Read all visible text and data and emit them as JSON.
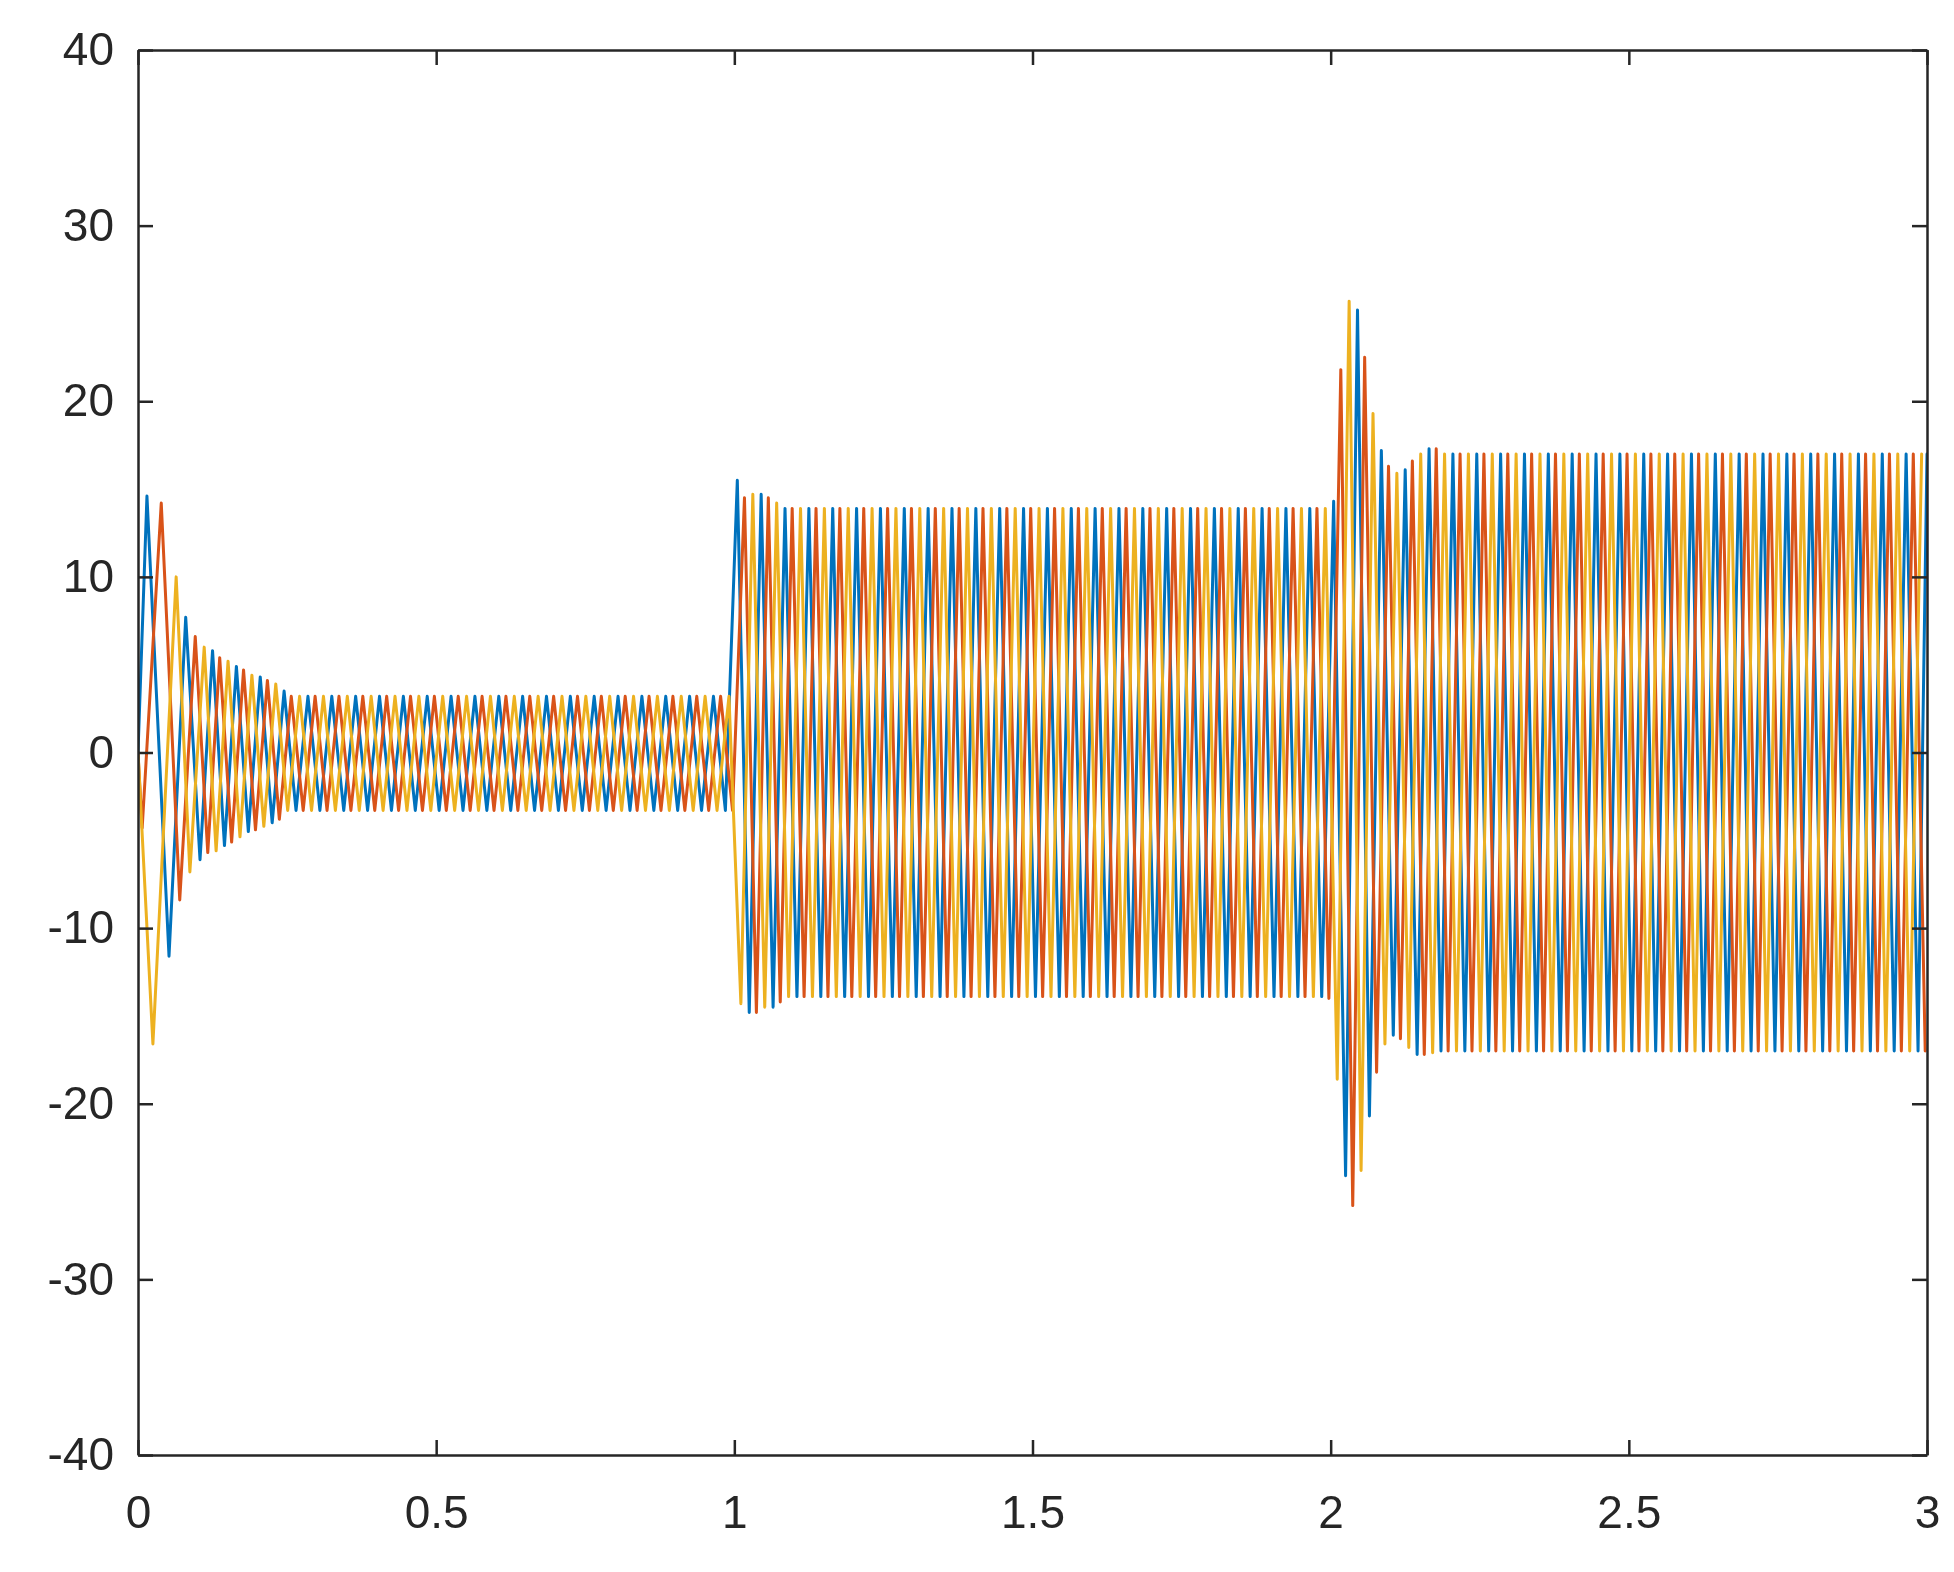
{
  "chart_data": {
    "type": "line",
    "xlim": [
      0,
      3
    ],
    "ylim": [
      -40,
      40
    ],
    "xticks": [
      0,
      0.5,
      1,
      1.5,
      2,
      2.5,
      3
    ],
    "yticks": [
      -40,
      -30,
      -20,
      -10,
      0,
      10,
      20,
      30,
      40
    ],
    "series": [
      {
        "color": "#0072bd",
        "x": [
          0,
          0.015,
          0.052,
          0.08,
          0.104,
          0.125,
          0.145,
          0.165,
          0.185,
          0.205,
          0.225,
          0.245,
          0.265,
          0.285,
          0.305,
          0.325,
          0.345,
          0.365,
          0.385,
          0.405,
          0.425,
          0.445,
          0.465,
          0.485,
          0.505,
          0.525,
          0.545,
          0.565,
          0.585,
          0.605,
          0.625,
          0.645,
          0.665,
          0.685,
          0.705,
          0.725,
          0.745,
          0.765,
          0.785,
          0.805,
          0.825,
          0.845,
          0.865,
          0.885,
          0.905,
          0.925,
          0.945,
          0.965,
          0.985,
          1.005,
          1.025,
          1.045,
          1.065,
          1.085,
          1.105,
          1.125,
          1.145,
          1.165,
          1.185,
          1.205,
          1.225,
          1.245,
          1.265,
          1.285,
          1.305,
          1.325,
          1.345,
          1.365,
          1.385,
          1.405,
          1.425,
          1.445,
          1.465,
          1.485,
          1.505,
          1.525,
          1.545,
          1.565,
          1.585,
          1.605,
          1.625,
          1.645,
          1.665,
          1.685,
          1.705,
          1.725,
          1.745,
          1.765,
          1.785,
          1.805,
          1.825,
          1.845,
          1.865,
          1.885,
          1.905,
          1.925,
          1.945,
          1.965,
          1.985,
          2.005,
          2.025,
          2.045,
          2.065,
          2.085,
          2.105,
          2.125,
          2.145,
          2.165,
          2.185,
          2.205,
          2.225,
          2.245,
          2.265,
          2.285,
          2.305,
          2.325,
          2.345,
          2.365,
          2.385,
          2.405,
          2.425,
          2.445,
          2.465,
          2.485,
          2.505,
          2.525,
          2.545,
          2.565,
          2.585,
          2.605,
          2.625,
          2.645,
          2.665,
          2.685,
          2.705,
          2.725,
          2.745,
          2.765,
          2.785,
          2.805,
          2.825,
          2.845,
          2.865,
          2.885,
          2.905,
          2.925,
          2.945,
          2.965,
          2.985,
          3
        ],
        "values": [
          0,
          14.6,
          -11.6,
          7.7,
          -6.1,
          5.8,
          -5.3,
          4.9,
          -4.5,
          4.3,
          -4,
          3.5,
          -3.3,
          3.2,
          -3.3,
          3.2,
          -3.3,
          3.2,
          -3.3,
          3.2,
          -3.3,
          3.2,
          -3.3,
          3.2,
          -3.3,
          3.2,
          -3.3,
          3.2,
          -3.3,
          3.2,
          -3.3,
          3.2,
          -3.3,
          3.2,
          -3.3,
          3.2,
          -3.3,
          3.2,
          -3.3,
          3.2,
          -3.3,
          3.2,
          -3.3,
          3.2,
          -3.3,
          3.2,
          -3.3,
          3.2,
          -3.3,
          15.5,
          -14.8,
          14.7,
          -14.5,
          13.9,
          -13.9,
          13.9,
          -13.9,
          13.9,
          -13.9,
          13.9,
          -13.9,
          13.9,
          -13.9,
          13.9,
          -13.9,
          13.9,
          -13.9,
          13.9,
          -13.9,
          13.9,
          -13.9,
          13.9,
          -13.9,
          13.9,
          -13.9,
          13.9,
          -13.9,
          13.9,
          -13.9,
          13.9,
          -13.9,
          13.9,
          -13.9,
          13.9,
          -13.9,
          13.9,
          -13.9,
          13.9,
          -13.9,
          13.9,
          -13.9,
          13.9,
          -13.9,
          13.9,
          -13.9,
          13.9,
          -13.9,
          13.9,
          -13.9,
          14.3,
          -24.1,
          25.2,
          -20.7,
          17.2,
          -16.1,
          16.1,
          -17.2,
          17.3,
          -17,
          17,
          -17,
          17,
          -17,
          17,
          -17,
          17,
          -17,
          17,
          -17,
          17,
          -17,
          17,
          -17,
          17,
          -17,
          17,
          -17,
          17,
          -17,
          17,
          -17,
          17,
          -17,
          17,
          -17,
          17,
          -17,
          17,
          -17,
          17,
          -17,
          17,
          -17,
          17,
          -17,
          17,
          -17,
          17,
          -17,
          17
        ]
      },
      {
        "color": "#d95319",
        "x": [
          0,
          0.007,
          0.039,
          0.07,
          0.096,
          0.117,
          0.137,
          0.157,
          0.177,
          0.197,
          0.217,
          0.237,
          0.257,
          0.277,
          0.297,
          0.317,
          0.337,
          0.357,
          0.377,
          0.397,
          0.417,
          0.437,
          0.457,
          0.477,
          0.497,
          0.517,
          0.537,
          0.557,
          0.577,
          0.597,
          0.617,
          0.637,
          0.657,
          0.677,
          0.697,
          0.717,
          0.737,
          0.757,
          0.777,
          0.797,
          0.817,
          0.837,
          0.857,
          0.877,
          0.897,
          0.917,
          0.937,
          0.957,
          0.977,
          0.997,
          1.017,
          1.037,
          1.057,
          1.077,
          1.097,
          1.117,
          1.137,
          1.157,
          1.177,
          1.197,
          1.217,
          1.237,
          1.257,
          1.277,
          1.297,
          1.317,
          1.337,
          1.357,
          1.377,
          1.397,
          1.417,
          1.437,
          1.457,
          1.477,
          1.497,
          1.517,
          1.537,
          1.557,
          1.577,
          1.597,
          1.617,
          1.637,
          1.657,
          1.677,
          1.697,
          1.717,
          1.737,
          1.757,
          1.777,
          1.797,
          1.817,
          1.837,
          1.857,
          1.877,
          1.897,
          1.917,
          1.937,
          1.957,
          1.977,
          1.997,
          2.017,
          2.037,
          2.057,
          2.077,
          2.097,
          2.117,
          2.137,
          2.157,
          2.177,
          2.197,
          2.217,
          2.237,
          2.257,
          2.277,
          2.297,
          2.317,
          2.337,
          2.357,
          2.377,
          2.397,
          2.417,
          2.437,
          2.457,
          2.477,
          2.497,
          2.517,
          2.537,
          2.557,
          2.577,
          2.597,
          2.617,
          2.637,
          2.657,
          2.677,
          2.697,
          2.717,
          2.737,
          2.757,
          2.777,
          2.797,
          2.817,
          2.837,
          2.857,
          2.877,
          2.897,
          2.917,
          2.937,
          2.957,
          2.977,
          2.997
        ],
        "values": [
          0,
          -4.3,
          14.2,
          -8.4,
          6.6,
          -5.7,
          5.4,
          -5.1,
          4.7,
          -4.4,
          4.1,
          -3.8,
          3.2,
          -3.3,
          3.2,
          -3.3,
          3.2,
          -3.3,
          3.2,
          -3.3,
          3.2,
          -3.3,
          3.2,
          -3.3,
          3.2,
          -3.3,
          3.2,
          -3.3,
          3.2,
          -3.3,
          3.2,
          -3.3,
          3.2,
          -3.3,
          3.2,
          -3.3,
          3.2,
          -3.3,
          3.2,
          -3.3,
          3.2,
          -3.3,
          3.2,
          -3.3,
          3.2,
          -3.3,
          3.2,
          -3.3,
          3.2,
          -3.3,
          14.5,
          -14.8,
          14.5,
          -14.2,
          13.9,
          -13.9,
          13.9,
          -13.9,
          13.9,
          -13.9,
          13.9,
          -13.9,
          13.9,
          -13.9,
          13.9,
          -13.9,
          13.9,
          -13.9,
          13.9,
          -13.9,
          13.9,
          -13.9,
          13.9,
          -13.9,
          13.9,
          -13.9,
          13.9,
          -13.9,
          13.9,
          -13.9,
          13.9,
          -13.9,
          13.9,
          -13.9,
          13.9,
          -13.9,
          13.9,
          -13.9,
          13.9,
          -13.9,
          13.9,
          -13.9,
          13.9,
          -13.9,
          13.9,
          -13.9,
          13.9,
          -13.9,
          13.9,
          -14,
          21.8,
          -25.8,
          22.5,
          -18.2,
          16.3,
          -16.3,
          16.6,
          -17.2,
          17.3,
          -17,
          17,
          -17,
          17,
          -17,
          17,
          -17,
          17,
          -17,
          17,
          -17,
          17,
          -17,
          17,
          -17,
          17,
          -17,
          17,
          -17,
          17,
          -17,
          17,
          -17,
          17,
          -17,
          17,
          -17,
          17,
          -17,
          17,
          -17,
          17,
          -17,
          17,
          -17,
          17,
          -17,
          17,
          -17,
          17,
          -17
        ]
      },
      {
        "color": "#edb120",
        "x": [
          0,
          0.025,
          0.064,
          0.087,
          0.111,
          0.131,
          0.151,
          0.171,
          0.191,
          0.211,
          0.231,
          0.251,
          0.271,
          0.291,
          0.311,
          0.331,
          0.351,
          0.371,
          0.391,
          0.411,
          0.431,
          0.451,
          0.471,
          0.491,
          0.511,
          0.531,
          0.551,
          0.571,
          0.591,
          0.611,
          0.631,
          0.651,
          0.671,
          0.691,
          0.711,
          0.731,
          0.751,
          0.771,
          0.791,
          0.811,
          0.831,
          0.851,
          0.871,
          0.891,
          0.911,
          0.931,
          0.951,
          0.971,
          0.991,
          1.011,
          1.031,
          1.051,
          1.071,
          1.091,
          1.111,
          1.131,
          1.151,
          1.171,
          1.191,
          1.211,
          1.231,
          1.251,
          1.271,
          1.291,
          1.311,
          1.331,
          1.351,
          1.371,
          1.391,
          1.411,
          1.431,
          1.451,
          1.471,
          1.491,
          1.511,
          1.531,
          1.551,
          1.571,
          1.591,
          1.611,
          1.631,
          1.651,
          1.671,
          1.691,
          1.711,
          1.731,
          1.751,
          1.771,
          1.791,
          1.811,
          1.831,
          1.851,
          1.871,
          1.891,
          1.911,
          1.931,
          1.951,
          1.971,
          1.991,
          2.011,
          2.031,
          2.051,
          2.071,
          2.091,
          2.111,
          2.131,
          2.151,
          2.171,
          2.191,
          2.211,
          2.231,
          2.251,
          2.271,
          2.291,
          2.311,
          2.331,
          2.351,
          2.371,
          2.391,
          2.411,
          2.431,
          2.451,
          2.471,
          2.491,
          2.511,
          2.531,
          2.551,
          2.571,
          2.591,
          2.611,
          2.631,
          2.651,
          2.671,
          2.691,
          2.711,
          2.731,
          2.751,
          2.771,
          2.791,
          2.811,
          2.831,
          2.851,
          2.871,
          2.891,
          2.911,
          2.931,
          2.951,
          2.971,
          2.991
        ],
        "values": [
          0,
          -16.6,
          10,
          -6.8,
          6,
          -5.6,
          5.2,
          -4.8,
          4.4,
          -4.2,
          3.9,
          -3.3,
          3.2,
          -3.3,
          3.2,
          -3.3,
          3.2,
          -3.3,
          3.2,
          -3.3,
          3.2,
          -3.3,
          3.2,
          -3.3,
          3.2,
          -3.3,
          3.2,
          -3.3,
          3.2,
          -3.3,
          3.2,
          -3.3,
          3.2,
          -3.3,
          3.2,
          -3.3,
          3.2,
          -3.3,
          3.2,
          -3.3,
          3.2,
          -3.3,
          3.2,
          -3.3,
          3.2,
          -3.3,
          3.2,
          -3.3,
          3.2,
          -14.3,
          14.7,
          -14.5,
          14.2,
          -13.9,
          13.9,
          -13.9,
          13.9,
          -13.9,
          13.9,
          -13.9,
          13.9,
          -13.9,
          13.9,
          -13.9,
          13.9,
          -13.9,
          13.9,
          -13.9,
          13.9,
          -13.9,
          13.9,
          -13.9,
          13.9,
          -13.9,
          13.9,
          -13.9,
          13.9,
          -13.9,
          13.9,
          -13.9,
          13.9,
          -13.9,
          13.9,
          -13.9,
          13.9,
          -13.9,
          13.9,
          -13.9,
          13.9,
          -13.9,
          13.9,
          -13.9,
          13.9,
          -13.9,
          13.9,
          -13.9,
          13.9,
          -13.9,
          13.9,
          -18.6,
          25.7,
          -23.8,
          19.3,
          -16.6,
          15.9,
          -16.8,
          17,
          -17.1,
          17,
          -17,
          17,
          -17,
          17,
          -17,
          17,
          -17,
          17,
          -17,
          17,
          -17,
          17,
          -17,
          17,
          -17,
          17,
          -17,
          17,
          -17,
          17,
          -17,
          17,
          -17,
          17,
          -17,
          17,
          -17,
          17,
          -17,
          17,
          -17,
          17,
          -17,
          17,
          -17,
          17,
          -17,
          17,
          -17,
          17
        ]
      }
    ]
  }
}
